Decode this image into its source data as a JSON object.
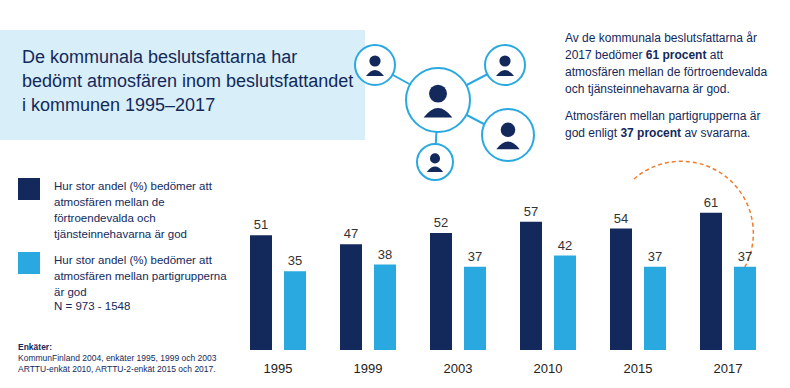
{
  "chart_data": {
    "type": "bar",
    "title": "De kommunala beslutsfattarna har bedömt atmosfären inom beslutsfattandet i kommunen 1995–2017",
    "annotations": [
      [
        "Av de kommunala beslutsfattarna år 2017 bedömer ",
        "61 procent",
        " att atmosfären mellan de förtroendevalda och tjänsteinnehavarna är god."
      ],
      [
        "Atmosfären mellan partigrupperna är god enligt ",
        "37 procent",
        " av svararna."
      ]
    ],
    "note": "N = 973 - 1548",
    "sources": {
      "heading": "Enkäter:",
      "lines": [
        "KommunFinland 2004, enkäter 1995, 1999 och 2003",
        "ARTTU-enkät 2010, ARTTU-2-enkät 2015 och 2017."
      ]
    },
    "categories": [
      "1995",
      "1999",
      "2003",
      "2010",
      "2015",
      "2017"
    ],
    "series": [
      {
        "name": "Hur stor andel (%) bedömer att atmosfären mellan de förtroendevalda och tjänsteinnehavarna är god",
        "color": "#13295b",
        "values": [
          51,
          47,
          52,
          57,
          54,
          61
        ]
      },
      {
        "name": "Hur stor andel (%) bedömer att atmosfären mellan partigrupperna är god",
        "color": "#29a9e0",
        "values": [
          35,
          38,
          37,
          42,
          37,
          37
        ]
      }
    ],
    "ylim": [
      0,
      80
    ],
    "data_labels": true,
    "tick_labels": "x",
    "grid": false
  }
}
